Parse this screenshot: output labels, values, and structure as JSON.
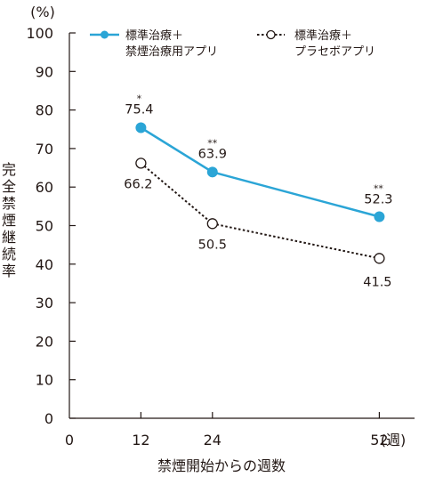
{
  "chart_data": {
    "type": "line",
    "ylabel": "完全禁煙継続率",
    "yunit": "(%)",
    "xlabel": "禁煙開始からの週数",
    "xunit": "(週)",
    "xlim": [
      0,
      55
    ],
    "ylim": [
      0,
      100
    ],
    "x_ticks": [
      0,
      12,
      24,
      52
    ],
    "y_ticks": [
      0,
      10,
      20,
      30,
      40,
      50,
      60,
      70,
      80,
      90,
      100
    ],
    "grid": false,
    "legend_position": "top",
    "series": [
      {
        "name_lines": [
          "標準治療＋",
          "禁煙治療用アプリ"
        ],
        "x": [
          12,
          24,
          52
        ],
        "values": [
          75.4,
          63.9,
          52.3
        ],
        "labels": [
          "75.4",
          "63.9",
          "52.3"
        ],
        "significance": [
          "*",
          "**",
          "**"
        ],
        "color": "#2ba5d6",
        "line_style": "solid",
        "marker": "filled-circle"
      },
      {
        "name_lines": [
          "標準治療＋",
          "プラセボアプリ"
        ],
        "x": [
          12,
          24,
          52
        ],
        "values": [
          66.2,
          50.5,
          41.5
        ],
        "labels": [
          "66.2",
          "50.5",
          "41.5"
        ],
        "color": "#231815",
        "line_style": "dotted",
        "marker": "open-circle"
      }
    ]
  }
}
